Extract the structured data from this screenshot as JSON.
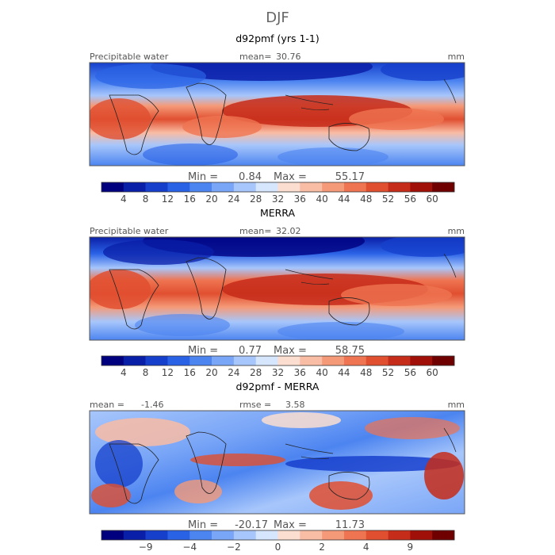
{
  "season": "DJF",
  "chart_data": [
    {
      "type": "heatmap",
      "title": "d92pmf (yrs 1-1)",
      "variable": "Precipitable water",
      "mean_label": "mean=",
      "mean": "30.76",
      "units": "mm",
      "min_label": "Min =",
      "min": "0.84",
      "max_label": "Max =",
      "max": "55.17",
      "colorbar_ticks": [
        "4",
        "8",
        "12",
        "16",
        "20",
        "24",
        "28",
        "32",
        "36",
        "40",
        "44",
        "48",
        "52",
        "56",
        "60"
      ],
      "colors": [
        "#00007f",
        "#0a1fa8",
        "#1640cc",
        "#2a62e6",
        "#4c84f0",
        "#7aa6f7",
        "#a7c6fb",
        "#d6e6fc",
        "#fcded0",
        "#f9bca4",
        "#f59a78",
        "#ef7451",
        "#e04f30",
        "#c52c1a",
        "#a01008",
        "#6e0000"
      ]
    },
    {
      "type": "heatmap",
      "title": "MERRA",
      "variable": "Precipitable water",
      "mean_label": "mean=",
      "mean": "32.02",
      "units": "mm",
      "min_label": "Min =",
      "min": "0.77",
      "max_label": "Max =",
      "max": "58.75",
      "colorbar_ticks": [
        "4",
        "8",
        "12",
        "16",
        "20",
        "24",
        "28",
        "32",
        "36",
        "40",
        "44",
        "48",
        "52",
        "56",
        "60"
      ],
      "colors": [
        "#00007f",
        "#0a1fa8",
        "#1640cc",
        "#2a62e6",
        "#4c84f0",
        "#7aa6f7",
        "#a7c6fb",
        "#d6e6fc",
        "#fcded0",
        "#f9bca4",
        "#f59a78",
        "#ef7451",
        "#e04f30",
        "#c52c1a",
        "#a01008",
        "#6e0000"
      ]
    },
    {
      "type": "heatmap",
      "title": "d92pmf - MERRA",
      "mean_label": "mean =",
      "mean": "-1.46",
      "rmse_label": "rmse =",
      "rmse": "3.58",
      "units": "mm",
      "min_label": "Min =",
      "min": "-20.17",
      "max_label": "Max =",
      "max": "11.73",
      "colorbar_ticks": [
        "-9",
        "-4",
        "-2",
        "0",
        "2",
        "4",
        "9"
      ],
      "colors": [
        "#00007f",
        "#0a1fa8",
        "#1640cc",
        "#2a62e6",
        "#4c84f0",
        "#7aa6f7",
        "#a7c6fb",
        "#d6e6fc",
        "#fcded0",
        "#f9bca4",
        "#f59a78",
        "#ef7451",
        "#e04f30",
        "#c52c1a",
        "#a01008",
        "#6e0000"
      ]
    }
  ]
}
